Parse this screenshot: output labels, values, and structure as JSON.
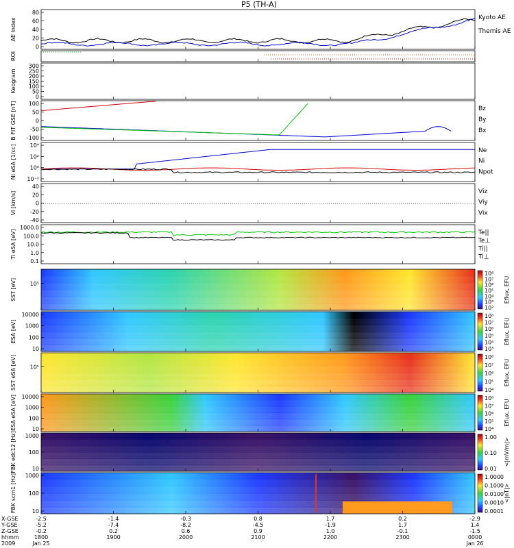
{
  "title": "P5 (TH-A)",
  "colors": {
    "red": "#d00000",
    "green": "#00c800",
    "blue": "#0000d0",
    "black": "#000000"
  },
  "chart_data": [
    {
      "type": "line",
      "ylabel": "AE Index",
      "ylim": [
        0,
        80
      ],
      "ticks": [
        "80",
        "60",
        "40",
        "20",
        "0"
      ],
      "legend": [
        {
          "name": "Kyoto AE",
          "color": "blue"
        },
        {
          "name": "Themis AE",
          "color": "black"
        }
      ]
    },
    {
      "type": "line",
      "ylabel": "ROI",
      "ticks": []
    },
    {
      "type": "line",
      "ylabel": "Keogram",
      "ylim": [
        0,
        300
      ],
      "ticks": [
        "300",
        "250",
        "200",
        "150",
        "100",
        "50",
        "0"
      ]
    },
    {
      "type": "line",
      "ylabel": "B FIT GSE [nT]",
      "ylim": [
        -100,
        100
      ],
      "ticks": [
        "100",
        "50",
        "0",
        "-50",
        "-100"
      ],
      "legend": [
        {
          "name": "Bz",
          "color": "red"
        },
        {
          "name": "By",
          "color": "green"
        },
        {
          "name": "Bx",
          "color": "blue"
        }
      ]
    },
    {
      "type": "line",
      "ylabel": "Ni eSA [1/cc]",
      "ticks": [
        "10⁴",
        "10²",
        "10⁰",
        "10⁻²"
      ],
      "legend": [
        {
          "name": "Ne",
          "color": "red"
        },
        {
          "name": "Ni",
          "color": "black"
        },
        {
          "name": "Npot",
          "color": "blue"
        }
      ]
    },
    {
      "type": "line",
      "ylabel": "Vi [km/s]",
      "ticks": [
        "40",
        "20",
        "0",
        "-20",
        "-40"
      ],
      "legend": [
        {
          "name": "Viz",
          "color": "red"
        },
        {
          "name": "Viy",
          "color": "green"
        },
        {
          "name": "Vix",
          "color": "blue"
        }
      ]
    },
    {
      "type": "line",
      "ylabel": "Ti eSA [eV]",
      "ticks": [
        "1000.0",
        "100.0",
        "10.0",
        "1.0",
        "0.1"
      ],
      "legend": [
        {
          "name": "Te||",
          "color": "black"
        },
        {
          "name": "Te⊥",
          "color": "red"
        },
        {
          "name": "Ti||",
          "color": "green"
        },
        {
          "name": "Ti⊥",
          "color": "blue"
        }
      ]
    },
    {
      "type": "heatmap",
      "ylabel": "SST [eV]",
      "ticks": [
        "10⁵"
      ],
      "colorbar": {
        "label": "Eflux, EFU",
        "ticks": [
          "10⁸",
          "10⁷",
          "10⁶",
          "10⁵",
          "10⁴",
          "10³",
          "10²"
        ]
      }
    },
    {
      "type": "heatmap",
      "ylabel": "ESA [eV]",
      "ticks": [
        "10000",
        "1000",
        "100",
        "10"
      ],
      "colorbar": {
        "label": "Eflux, EFU",
        "ticks": [
          "10⁸",
          "10⁷",
          "10⁶",
          "10⁵",
          "10⁴",
          "10³"
        ]
      }
    },
    {
      "type": "heatmap",
      "ylabel": "SST eSA [eV]",
      "ticks": [
        "10⁵"
      ],
      "colorbar": {
        "label": "Eflux, EFU",
        "ticks": [
          "10⁸",
          "10⁷",
          "10⁶",
          "10⁵",
          "10⁴"
        ]
      }
    },
    {
      "type": "heatmap",
      "ylabel": "ESA eSA [eV]",
      "ticks": [
        "10000",
        "1000",
        "100",
        "10"
      ],
      "colorbar": {
        "label": "Eflux, EFU",
        "ticks": [
          "10⁸",
          "10⁷",
          "10⁶",
          "10⁵",
          "10⁴"
        ]
      }
    },
    {
      "type": "heatmap",
      "ylabel": "FBK edc12 [Hz]",
      "ticks": [
        "1000",
        "100",
        "10"
      ],
      "colorbar": {
        "label": "<|mV/m|>",
        "ticks": [
          "1.00",
          "0.10",
          "0.01"
        ]
      }
    },
    {
      "type": "heatmap",
      "ylabel": "FBK scm1 [Hz]",
      "ticks": [
        "1000",
        "100",
        "10"
      ],
      "colorbar": {
        "label": "<|nT|>",
        "ticks": [
          "1.0000",
          "0.1000",
          "0.0100",
          "0.0010",
          "0.0001"
        ]
      }
    }
  ],
  "time_axis": {
    "row_labels": [
      "X-GSE",
      "Y-GSE",
      "Z-GSE",
      "hhmm",
      "2009"
    ],
    "columns": [
      [
        "-2.5",
        "-5.2",
        "-0.2",
        "1800",
        "Jan 25"
      ],
      [
        "-1.4",
        "-7.4",
        "0.2",
        "1900",
        ""
      ],
      [
        "-0.3",
        "-8.2",
        "0.6",
        "2000",
        ""
      ],
      [
        "0.8",
        "-4.5",
        "0.9",
        "2100",
        ""
      ],
      [
        "1.7",
        "-1.9",
        "1.0",
        "2200",
        ""
      ],
      [
        "0.2",
        "1.7",
        "-0.1",
        "2300",
        ""
      ],
      [
        "-2.9",
        "1.4",
        "-1.5",
        "0000",
        "Jan 26"
      ]
    ]
  }
}
